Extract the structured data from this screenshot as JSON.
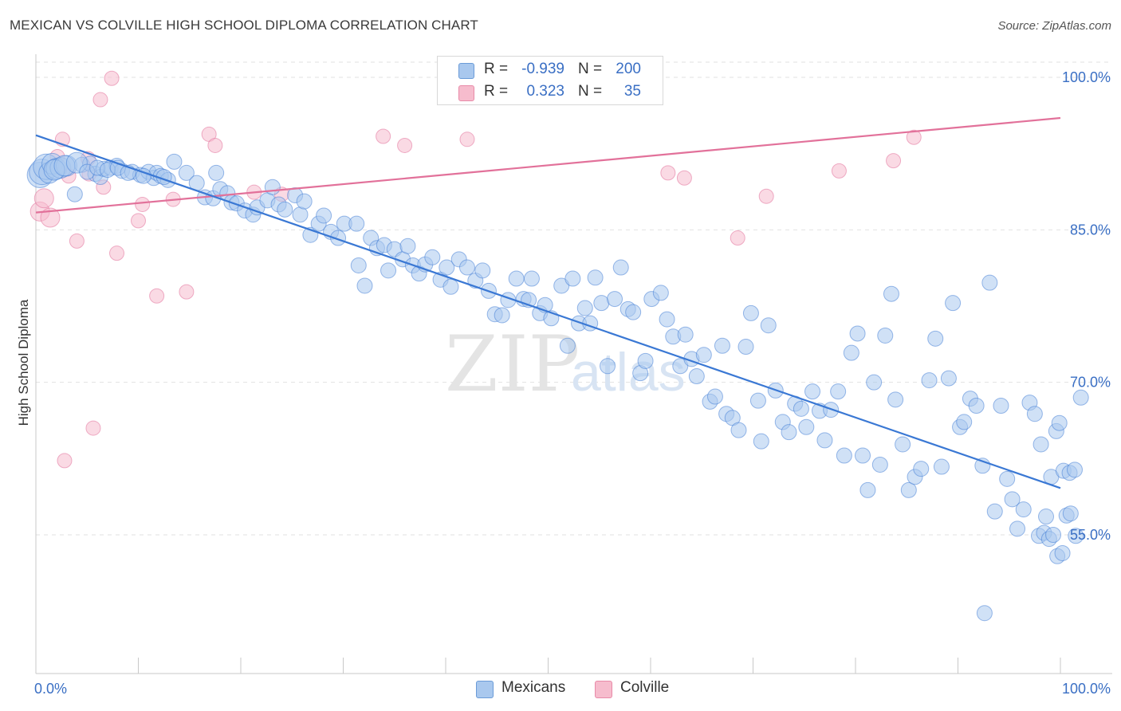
{
  "title": "MEXICAN VS COLVILLE HIGH SCHOOL DIPLOMA CORRELATION CHART",
  "source": "Source: ZipAtlas.com",
  "watermark": {
    "zip": "ZIP",
    "atlas": "atlas"
  },
  "colors": {
    "blue": "#3a78d4",
    "blue_fill": "#a9c8ee",
    "pink": "#e2719a",
    "pink_fill": "#f6bccd",
    "tick_text": "#3a6fc4"
  },
  "legend": {
    "row1": {
      "r_label": "R =",
      "r_value": "-0.939",
      "n_label": "N =",
      "n_value": "200"
    },
    "row2": {
      "r_label": "R =",
      "r_value": "0.323",
      "n_label": "N =",
      "n_value": "35"
    }
  },
  "bottom_legend": {
    "series1": "Mexicans",
    "series2": "Colville"
  },
  "chart_data": {
    "type": "scatter",
    "title": "MEXICAN VS COLVILLE HIGH SCHOOL DIPLOMA CORRELATION CHART",
    "xlabel": "",
    "ylabel": "High School Diploma",
    "xlim": [
      0,
      100
    ],
    "ylim": [
      40,
      100
    ],
    "x_tick_labels": [
      "0.0%",
      "100.0%"
    ],
    "y_tick_labels": [
      "100.0%",
      "85.0%",
      "70.0%",
      "55.0%"
    ],
    "y_ticks": [
      100,
      85,
      70,
      55
    ],
    "grid": true,
    "legend_position": "top-center",
    "series": [
      {
        "name": "Mexicans",
        "r": -0.939,
        "n": 200,
        "trend": {
          "x": [
            0,
            100
          ],
          "y": [
            94.3,
            59.6
          ]
        },
        "points": [
          [
            0.4,
            90.4
          ],
          [
            0.6,
            90.7
          ],
          [
            1.0,
            91.2
          ],
          [
            1.3,
            90.6
          ],
          [
            1.6,
            91.5
          ],
          [
            2.0,
            91.0
          ],
          [
            2.4,
            91.1
          ],
          [
            3.0,
            91.3
          ],
          [
            3.8,
            88.5
          ],
          [
            4.5,
            91.4
          ],
          [
            5.3,
            91.5
          ],
          [
            5.8,
            90.5
          ],
          [
            6.3,
            90.2
          ],
          [
            6.6,
            91.0
          ],
          [
            7.3,
            91.1
          ],
          [
            7.9,
            91.3
          ],
          [
            8.4,
            90.8
          ],
          [
            9.4,
            90.7
          ],
          [
            10.2,
            90.4
          ],
          [
            11.0,
            90.7
          ],
          [
            11.5,
            90.1
          ],
          [
            11.8,
            90.6
          ],
          [
            12.2,
            90.3
          ],
          [
            12.9,
            89.9
          ],
          [
            13.5,
            91.7
          ],
          [
            14.7,
            90.6
          ],
          [
            15.7,
            89.6
          ],
          [
            16.5,
            88.2
          ],
          [
            17.3,
            88.1
          ],
          [
            17.6,
            90.6
          ],
          [
            18.0,
            89.0
          ],
          [
            18.7,
            88.6
          ],
          [
            19.1,
            87.7
          ],
          [
            19.6,
            87.6
          ],
          [
            20.4,
            86.9
          ],
          [
            21.2,
            86.5
          ],
          [
            21.6,
            87.2
          ],
          [
            22.6,
            87.9
          ],
          [
            23.1,
            89.2
          ],
          [
            23.7,
            87.5
          ],
          [
            24.3,
            87.0
          ],
          [
            25.3,
            88.4
          ],
          [
            25.8,
            86.5
          ],
          [
            26.2,
            87.8
          ],
          [
            26.8,
            84.5
          ],
          [
            27.6,
            85.6
          ],
          [
            28.1,
            86.4
          ],
          [
            28.8,
            84.8
          ],
          [
            29.5,
            84.2
          ],
          [
            30.1,
            85.6
          ],
          [
            31.3,
            85.6
          ],
          [
            31.5,
            81.5
          ],
          [
            32.1,
            79.5
          ],
          [
            32.7,
            84.2
          ],
          [
            33.3,
            83.2
          ],
          [
            34.0,
            83.5
          ],
          [
            34.4,
            81.0
          ],
          [
            35.0,
            83.1
          ],
          [
            35.8,
            82.1
          ],
          [
            36.3,
            83.4
          ],
          [
            36.8,
            81.5
          ],
          [
            37.4,
            80.7
          ],
          [
            38.0,
            81.6
          ],
          [
            38.7,
            82.3
          ],
          [
            39.5,
            80.1
          ],
          [
            40.1,
            81.3
          ],
          [
            40.5,
            79.4
          ],
          [
            41.3,
            82.1
          ],
          [
            42.1,
            81.3
          ],
          [
            42.9,
            80.0
          ],
          [
            43.6,
            81.0
          ],
          [
            44.2,
            79.0
          ],
          [
            44.8,
            76.7
          ],
          [
            45.5,
            76.6
          ],
          [
            46.1,
            78.1
          ],
          [
            46.9,
            80.2
          ],
          [
            47.6,
            78.2
          ],
          [
            48.1,
            78.1
          ],
          [
            48.4,
            80.2
          ],
          [
            49.2,
            76.8
          ],
          [
            49.7,
            77.6
          ],
          [
            50.3,
            76.3
          ],
          [
            51.3,
            79.5
          ],
          [
            51.9,
            73.6
          ],
          [
            52.4,
            80.2
          ],
          [
            53.0,
            75.8
          ],
          [
            53.6,
            77.3
          ],
          [
            54.1,
            75.8
          ],
          [
            54.6,
            80.3
          ],
          [
            55.2,
            77.8
          ],
          [
            55.8,
            71.6
          ],
          [
            56.5,
            78.2
          ],
          [
            57.1,
            81.3
          ],
          [
            57.8,
            77.2
          ],
          [
            58.3,
            76.9
          ],
          [
            59.0,
            70.9
          ],
          [
            59.5,
            72.1
          ],
          [
            60.1,
            78.2
          ],
          [
            61.0,
            78.8
          ],
          [
            61.6,
            76.2
          ],
          [
            62.2,
            74.5
          ],
          [
            62.9,
            71.6
          ],
          [
            63.4,
            74.7
          ],
          [
            64.0,
            72.3
          ],
          [
            64.5,
            70.6
          ],
          [
            65.2,
            72.7
          ],
          [
            65.8,
            68.1
          ],
          [
            66.3,
            68.6
          ],
          [
            67.0,
            73.6
          ],
          [
            67.4,
            66.9
          ],
          [
            68.0,
            66.5
          ],
          [
            68.6,
            65.3
          ],
          [
            69.3,
            73.5
          ],
          [
            69.8,
            76.8
          ],
          [
            70.5,
            68.2
          ],
          [
            70.8,
            64.2
          ],
          [
            71.5,
            75.6
          ],
          [
            72.2,
            69.2
          ],
          [
            72.9,
            66.1
          ],
          [
            73.5,
            65.1
          ],
          [
            74.1,
            67.9
          ],
          [
            74.7,
            67.4
          ],
          [
            75.2,
            65.6
          ],
          [
            75.8,
            69.1
          ],
          [
            76.5,
            67.2
          ],
          [
            77.0,
            64.3
          ],
          [
            77.6,
            67.3
          ],
          [
            78.3,
            69.1
          ],
          [
            78.9,
            62.8
          ],
          [
            79.6,
            72.9
          ],
          [
            80.2,
            74.8
          ],
          [
            80.7,
            62.8
          ],
          [
            81.2,
            59.4
          ],
          [
            81.8,
            70.0
          ],
          [
            82.4,
            61.9
          ],
          [
            82.9,
            74.6
          ],
          [
            83.5,
            78.7
          ],
          [
            83.9,
            68.3
          ],
          [
            84.6,
            63.9
          ],
          [
            85.2,
            59.4
          ],
          [
            85.8,
            60.7
          ],
          [
            86.4,
            61.5
          ],
          [
            87.2,
            70.2
          ],
          [
            87.8,
            74.3
          ],
          [
            88.4,
            61.7
          ],
          [
            89.1,
            70.4
          ],
          [
            89.5,
            77.8
          ],
          [
            90.2,
            65.6
          ],
          [
            90.6,
            66.1
          ],
          [
            91.2,
            68.4
          ],
          [
            91.8,
            67.7
          ],
          [
            92.4,
            61.8
          ],
          [
            93.1,
            79.8
          ],
          [
            93.6,
            57.3
          ],
          [
            94.2,
            67.7
          ],
          [
            94.8,
            60.5
          ],
          [
            95.3,
            58.5
          ],
          [
            95.8,
            55.6
          ],
          [
            96.4,
            57.5
          ],
          [
            97.0,
            68.0
          ],
          [
            97.5,
            66.9
          ],
          [
            98.1,
            63.9
          ],
          [
            98.6,
            56.8
          ],
          [
            99.1,
            60.7
          ],
          [
            99.6,
            65.2
          ],
          [
            99.9,
            66.0
          ],
          [
            100.3,
            61.3
          ],
          [
            100.9,
            61.1
          ],
          [
            101.4,
            61.4
          ],
          [
            92.6,
            47.3
          ],
          [
            97.9,
            54.9
          ],
          [
            98.4,
            55.2
          ],
          [
            98.9,
            54.6
          ],
          [
            99.3,
            55.0
          ],
          [
            99.7,
            52.9
          ],
          [
            100.2,
            53.2
          ],
          [
            100.6,
            56.9
          ],
          [
            101.0,
            57.1
          ],
          [
            101.5,
            54.9
          ],
          [
            102.0,
            68.5
          ],
          [
            1.8,
            90.9
          ],
          [
            2.8,
            91.3
          ],
          [
            4.0,
            91.6
          ],
          [
            5.0,
            90.7
          ],
          [
            6.0,
            91.1
          ],
          [
            7.0,
            90.9
          ],
          [
            8.0,
            91.1
          ],
          [
            9.0,
            90.6
          ],
          [
            10.5,
            90.3
          ],
          [
            12.5,
            90.2
          ]
        ]
      },
      {
        "name": "Colville",
        "r": 0.323,
        "n": 35,
        "trend": {
          "x": [
            0,
            100
          ],
          "y": [
            86.7,
            96.0
          ]
        },
        "points": [
          [
            0.4,
            86.8
          ],
          [
            0.8,
            88.1
          ],
          [
            1.4,
            86.2
          ],
          [
            2.1,
            92.2
          ],
          [
            2.6,
            93.9
          ],
          [
            3.2,
            90.3
          ],
          [
            4.0,
            83.9
          ],
          [
            5.1,
            92.0
          ],
          [
            5.6,
            65.5
          ],
          [
            6.3,
            97.8
          ],
          [
            6.6,
            89.2
          ],
          [
            7.4,
            99.9
          ],
          [
            7.9,
            82.7
          ],
          [
            10.0,
            85.9
          ],
          [
            10.4,
            87.5
          ],
          [
            11.8,
            78.5
          ],
          [
            13.4,
            88.0
          ],
          [
            14.7,
            78.9
          ],
          [
            16.9,
            94.4
          ],
          [
            17.5,
            93.3
          ],
          [
            21.3,
            88.7
          ],
          [
            24.0,
            88.5
          ],
          [
            33.9,
            94.2
          ],
          [
            36.0,
            93.3
          ],
          [
            42.1,
            93.9
          ],
          [
            50.8,
            99.9
          ],
          [
            61.7,
            90.6
          ],
          [
            63.3,
            90.1
          ],
          [
            68.5,
            84.2
          ],
          [
            71.3,
            88.3
          ],
          [
            78.4,
            90.8
          ],
          [
            83.7,
            91.8
          ],
          [
            85.7,
            94.1
          ],
          [
            2.8,
            62.3
          ],
          [
            5.2,
            90.5
          ]
        ]
      }
    ]
  }
}
